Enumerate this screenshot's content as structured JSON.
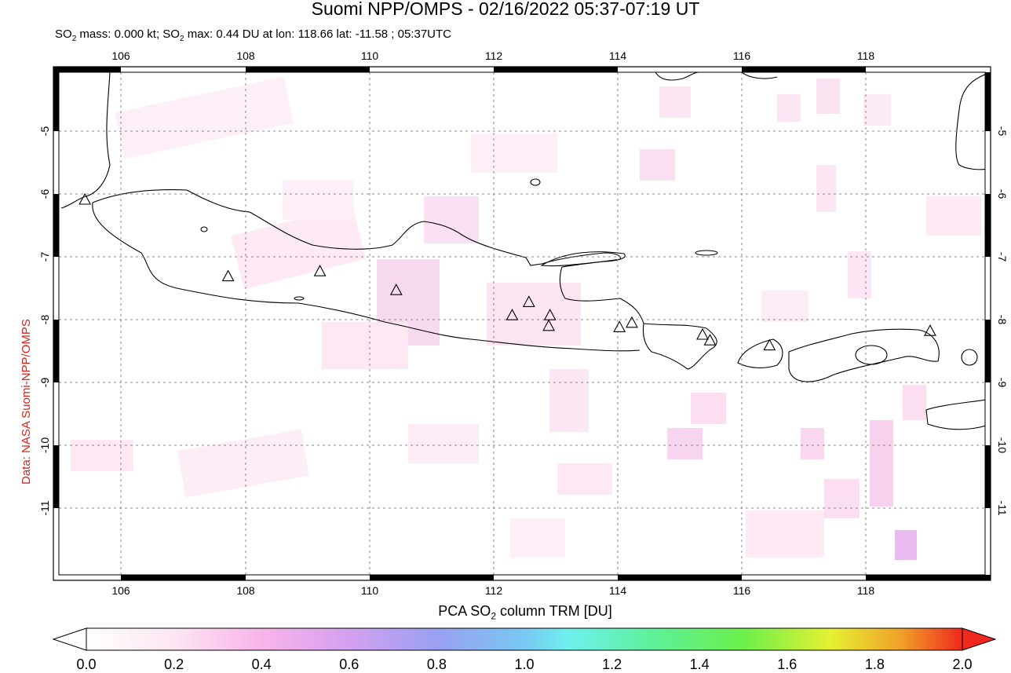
{
  "title": "Suomi NPP/OMPS - 02/16/2022 05:37-07:19 UT",
  "subtitle": {
    "part1": "SO",
    "sub1": "2",
    "part2": " mass: 0.000 kt; SO",
    "sub2": "2",
    "part3": " max: 0.44 DU at lon: 118.66 lat: -11.58 ; 05:37UTC"
  },
  "credit": "Data: NASA Suomi-NPP/OMPS",
  "map": {
    "lon_ticks": [
      "106",
      "108",
      "110",
      "112",
      "114",
      "116",
      "118"
    ],
    "lat_ticks": [
      "-5",
      "-6",
      "-7",
      "-8",
      "-9",
      "-10",
      "-11"
    ],
    "lon_range": [
      105,
      120
    ],
    "lat_range": [
      -12,
      -4
    ],
    "volcanoes": [
      {
        "lon": 105.42,
        "lat": -6.1
      },
      {
        "lon": 107.73,
        "lat": -7.32
      },
      {
        "lon": 109.21,
        "lat": -7.24
      },
      {
        "lon": 110.44,
        "lat": -7.54
      },
      {
        "lon": 112.31,
        "lat": -7.94
      },
      {
        "lon": 112.58,
        "lat": -7.73
      },
      {
        "lon": 112.92,
        "lat": -7.94
      },
      {
        "lon": 112.9,
        "lat": -8.11
      },
      {
        "lon": 114.04,
        "lat": -8.13
      },
      {
        "lon": 114.24,
        "lat": -8.06
      },
      {
        "lon": 115.38,
        "lat": -8.25
      },
      {
        "lon": 115.5,
        "lat": -8.34
      },
      {
        "lon": 116.46,
        "lat": -8.42
      },
      {
        "lon": 119.05,
        "lat": -8.19
      }
    ]
  },
  "colorbar": {
    "title_part1": "PCA SO",
    "title_sub": "2",
    "title_part2": " column TRM [DU]",
    "ticks": [
      "0.0",
      "0.2",
      "0.4",
      "0.6",
      "0.8",
      "1.0",
      "1.2",
      "1.4",
      "1.6",
      "1.8",
      "2.0"
    ],
    "colors": [
      "#ffffff",
      "#fde6f2",
      "#f9b4ea",
      "#c89df2",
      "#8fa4f2",
      "#6ff0f2",
      "#5ff0a0",
      "#6cf04c",
      "#e6f032",
      "#f0a028",
      "#f0281e"
    ]
  }
}
